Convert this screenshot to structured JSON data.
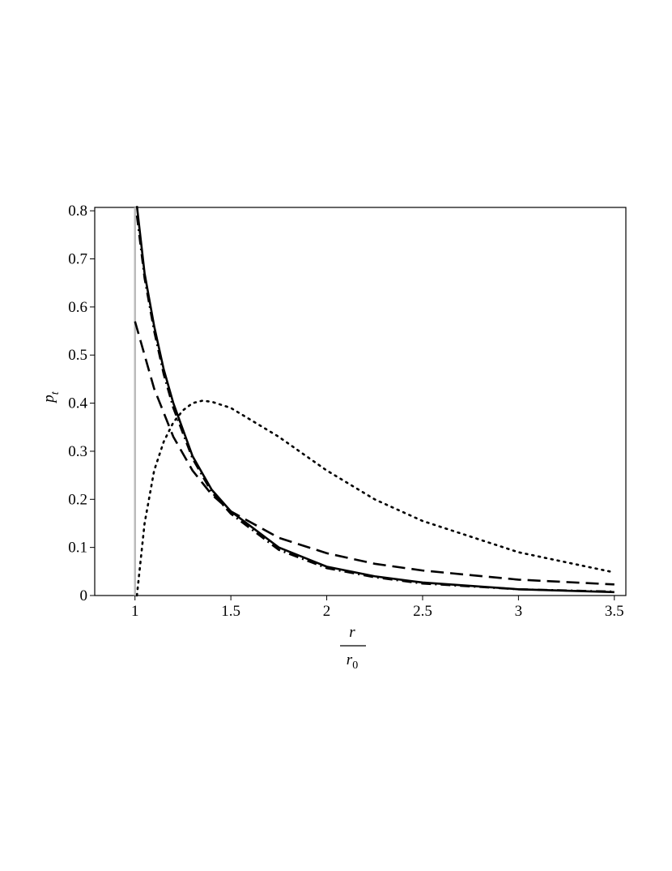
{
  "chart_data": {
    "type": "line",
    "ylabel": "p",
    "ylabel_sub": "t",
    "xlabel": {
      "numerator": "r",
      "denominator": "r",
      "denominator_sub": "0"
    },
    "xlim": [
      0.79,
      3.56
    ],
    "ylim": [
      0,
      0.807
    ],
    "xticks": [
      1,
      1.5,
      2,
      2.5,
      3,
      3.5
    ],
    "yticks": [
      0,
      0.1,
      0.2,
      0.3,
      0.4,
      0.5,
      0.6,
      0.7,
      0.8
    ],
    "vline": {
      "x": 1,
      "color": "#bbbbbb"
    },
    "series": [
      {
        "color": "#000000",
        "dash": "solid",
        "x": [
          1.01,
          1.05,
          1.1,
          1.15,
          1.2,
          1.3,
          1.4,
          1.5,
          1.75,
          2,
          2.25,
          2.5,
          3,
          3.5
        ],
        "values": [
          0.81,
          0.67,
          0.56,
          0.47,
          0.4,
          0.29,
          0.22,
          0.175,
          0.1,
          0.06,
          0.04,
          0.027,
          0.013,
          0.007
        ]
      },
      {
        "color": "#000000",
        "dash": "dashdot",
        "x": [
          1.01,
          1.05,
          1.1,
          1.15,
          1.2,
          1.3,
          1.4,
          1.5,
          1.75,
          2,
          2.25,
          2.5,
          3,
          3.5
        ],
        "values": [
          0.79,
          0.66,
          0.55,
          0.46,
          0.39,
          0.285,
          0.215,
          0.17,
          0.095,
          0.057,
          0.038,
          0.025,
          0.013,
          0.008
        ]
      },
      {
        "color": "#000000",
        "dash": "dashed",
        "x": [
          1,
          1.1,
          1.2,
          1.3,
          1.4,
          1.5,
          1.75,
          2,
          2.25,
          2.5,
          3,
          3.5
        ],
        "values": [
          0.57,
          0.43,
          0.33,
          0.26,
          0.21,
          0.175,
          0.12,
          0.088,
          0.066,
          0.052,
          0.033,
          0.023
        ]
      },
      {
        "color": "#000000",
        "dash": "dotted",
        "x": [
          1.01,
          1.05,
          1.1,
          1.15,
          1.2,
          1.25,
          1.3,
          1.35,
          1.4,
          1.5,
          1.75,
          2,
          2.25,
          2.5,
          3,
          3.5
        ],
        "values": [
          0.0,
          0.15,
          0.26,
          0.32,
          0.36,
          0.385,
          0.4,
          0.405,
          0.403,
          0.39,
          0.33,
          0.26,
          0.2,
          0.155,
          0.09,
          0.048
        ]
      }
    ]
  }
}
